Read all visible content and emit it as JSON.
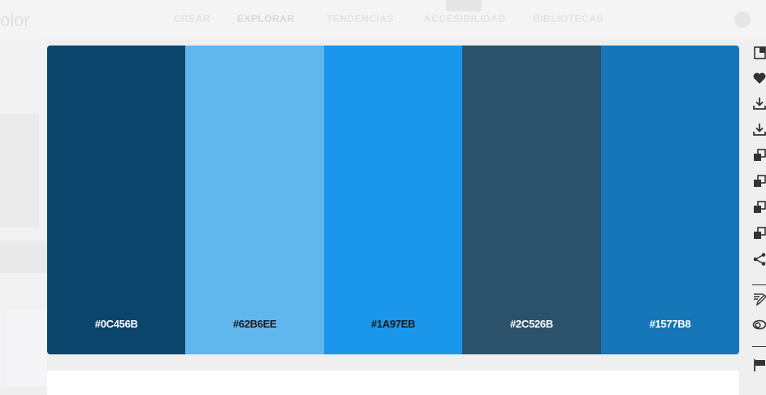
{
  "nav": {
    "logo": "olor",
    "items": [
      "CREAR",
      "EXPLORAR",
      "TENDENCIAS",
      "ACCESIBILIDAD",
      "BIBLIOTECAS"
    ],
    "active": "EXPLORAR"
  },
  "palette": {
    "swatches": [
      {
        "hex": "#0C456B",
        "label": "#0C456B",
        "text_color": "#ffffff"
      },
      {
        "hex": "#62B6EE",
        "label": "#62B6EE",
        "text_color": "#1a1a1a"
      },
      {
        "hex": "#1A97EB",
        "label": "#1A97EB",
        "text_color": "#1a1a1a"
      },
      {
        "hex": "#2C526B",
        "label": "#2C526B",
        "text_color": "#ffffff"
      },
      {
        "hex": "#1577B8",
        "label": "#1577B8",
        "text_color": "#ffffff"
      }
    ]
  },
  "rail": {
    "icons": [
      "open-in-editor-icon",
      "heart-icon",
      "download-icon",
      "download-icon",
      "copy-icon",
      "copy-icon",
      "copy-icon",
      "copy-icon",
      "share-icon",
      "edit-icon",
      "creative-cloud-icon",
      "flag-icon"
    ]
  }
}
